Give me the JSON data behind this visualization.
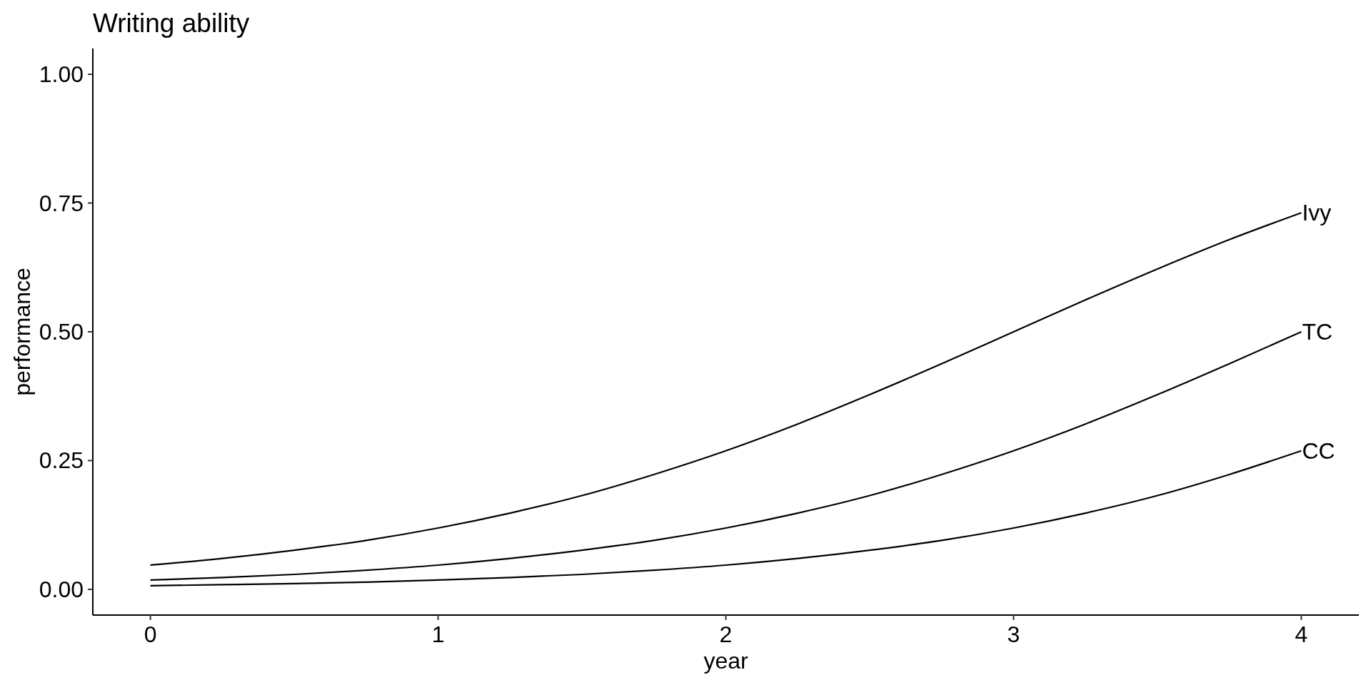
{
  "chart_data": {
    "type": "line",
    "title": "Writing ability",
    "xlabel": "year",
    "ylabel": "performance",
    "x": [
      0,
      0.25,
      0.5,
      0.75,
      1,
      1.25,
      1.5,
      1.75,
      2,
      2.25,
      2.5,
      2.75,
      3,
      3.25,
      3.5,
      3.75,
      4
    ],
    "series": [
      {
        "name": "Ivy",
        "color": "#000000",
        "values": [
          0.047,
          0.06,
          0.076,
          0.095,
          0.119,
          0.148,
          0.182,
          0.223,
          0.269,
          0.321,
          0.378,
          0.438,
          0.5,
          0.562,
          0.622,
          0.679,
          0.731
        ]
      },
      {
        "name": "TC",
        "color": "#000000",
        "values": [
          0.018,
          0.023,
          0.029,
          0.037,
          0.047,
          0.06,
          0.076,
          0.095,
          0.119,
          0.148,
          0.182,
          0.223,
          0.269,
          0.321,
          0.378,
          0.438,
          0.5
        ]
      },
      {
        "name": "CC",
        "color": "#000000",
        "values": [
          0.007,
          0.009,
          0.011,
          0.014,
          0.018,
          0.023,
          0.029,
          0.037,
          0.047,
          0.06,
          0.076,
          0.095,
          0.119,
          0.148,
          0.182,
          0.223,
          0.269
        ]
      }
    ],
    "xlim": [
      -0.2,
      4.2
    ],
    "xticks": [
      0,
      1,
      2,
      3,
      4
    ],
    "ylim": [
      -0.05,
      1.05
    ],
    "yticks": [
      {
        "value": 0,
        "label": "0.00"
      },
      {
        "value": 0.25,
        "label": "0.25"
      },
      {
        "value": 0.5,
        "label": "0.50"
      },
      {
        "value": 0.75,
        "label": "0.75"
      },
      {
        "value": 1,
        "label": "1.00"
      }
    ]
  }
}
